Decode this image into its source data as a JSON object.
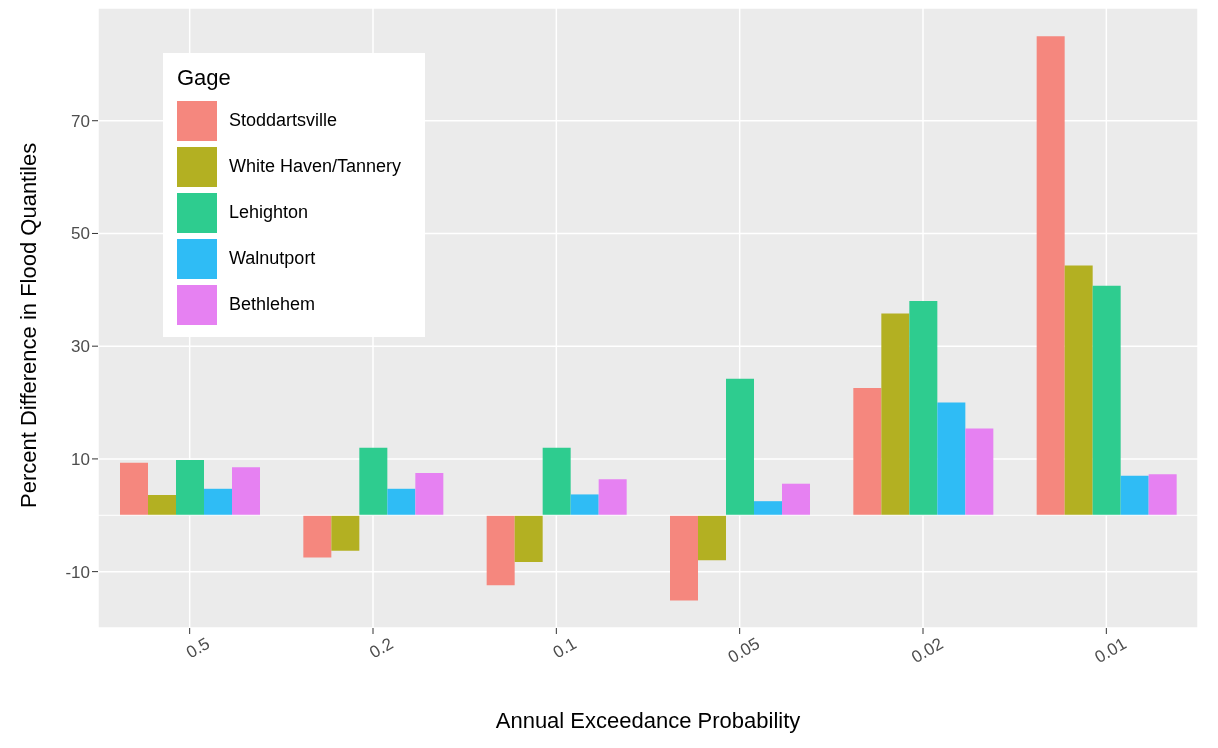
{
  "chart_data": {
    "type": "bar",
    "xlabel": "Annual Exceedance Probability",
    "ylabel": "Percent Difference in Flood Quantiles",
    "legend_title": "Gage",
    "categories": [
      "0.5",
      "0.2",
      "0.1",
      "0.05",
      "0.02",
      "0.01"
    ],
    "series": [
      {
        "name": "Stoddartsville",
        "color": "#f5877e",
        "values": [
          9.3,
          -7.5,
          -12.4,
          -15.1,
          22.6,
          85
        ]
      },
      {
        "name": "White Haven/Tannery",
        "color": "#b3b022",
        "values": [
          3.6,
          -6.3,
          -8.3,
          -8,
          35.8,
          44.3
        ]
      },
      {
        "name": "Lehighton",
        "color": "#2ecc8f",
        "values": [
          9.8,
          12,
          12,
          24.2,
          38,
          40.7
        ]
      },
      {
        "name": "Walnutport",
        "color": "#2fbcf5",
        "values": [
          4.7,
          4.7,
          3.7,
          2.5,
          20,
          7
        ]
      },
      {
        "name": "Bethlehem",
        "color": "#e681f2",
        "values": [
          8.5,
          7.5,
          6.4,
          5.6,
          15.4,
          7.3
        ]
      }
    ],
    "ylim": [
      -20,
      90
    ],
    "yticks": [
      -10,
      10,
      30,
      50,
      70
    ],
    "grid": true,
    "legend": "top left"
  }
}
